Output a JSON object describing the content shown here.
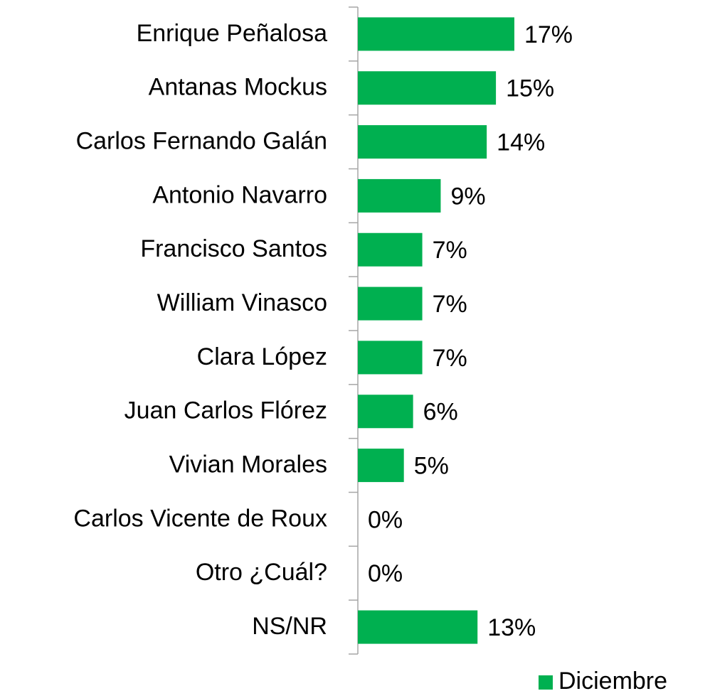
{
  "chart_data": {
    "type": "bar",
    "orientation": "horizontal",
    "categories": [
      "Enrique Peñalosa",
      "Antanas Mockus",
      "Carlos Fernando Galán",
      "Antonio Navarro",
      "Francisco Santos",
      "William Vinasco",
      "Clara López",
      "Juan Carlos Flórez",
      "Vivian Morales",
      "Carlos Vicente de Roux",
      "Otro ¿Cuál?",
      "NS/NR"
    ],
    "series": [
      {
        "name": "Diciembre",
        "color": "#00b050",
        "values": [
          17,
          15,
          14,
          9,
          7,
          7,
          7,
          6,
          5,
          0,
          0,
          13
        ],
        "value_labels": [
          "17%",
          "15%",
          "14%",
          "9%",
          "7%",
          "7%",
          "7%",
          "6%",
          "5%",
          "0%",
          "0%",
          "13%"
        ]
      }
    ],
    "legend": "bottom-right"
  }
}
